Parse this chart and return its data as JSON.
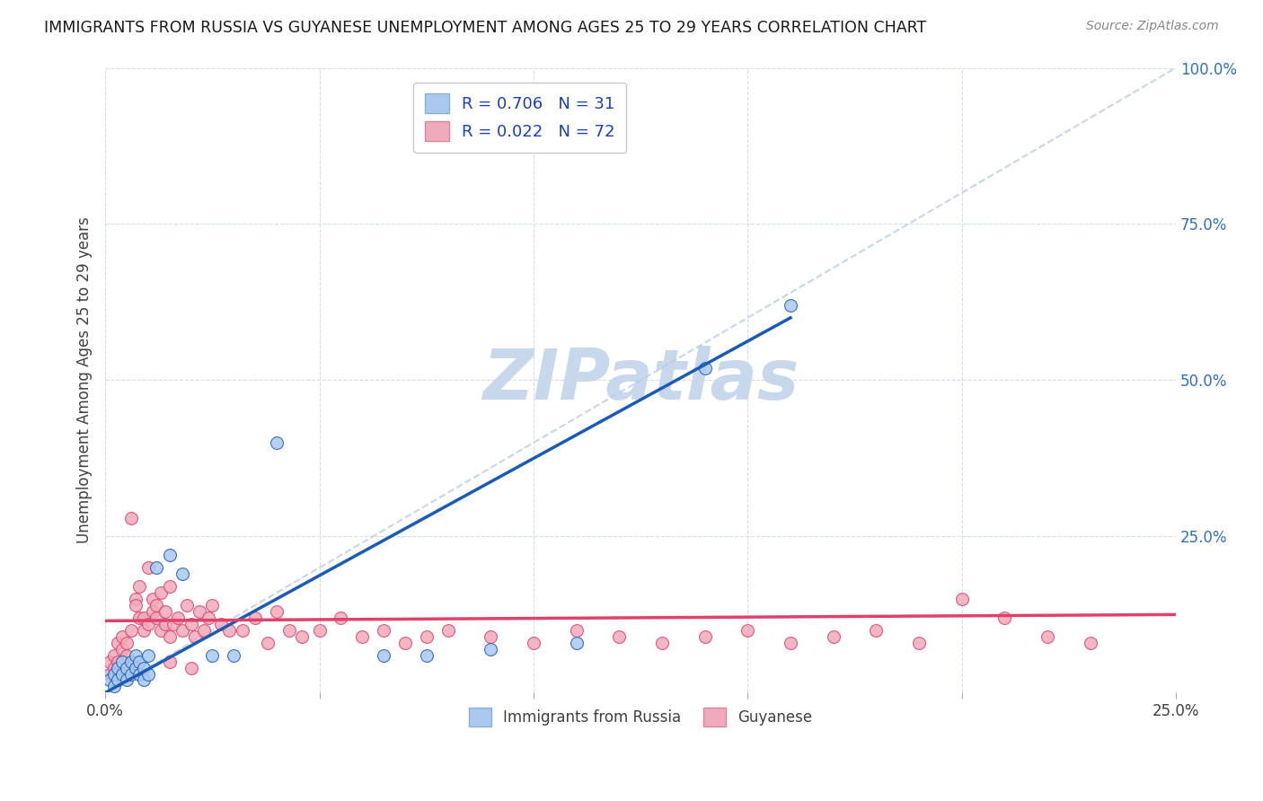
{
  "title": "IMMIGRANTS FROM RUSSIA VS GUYANESE UNEMPLOYMENT AMONG AGES 25 TO 29 YEARS CORRELATION CHART",
  "source": "Source: ZipAtlas.com",
  "ylabel": "Unemployment Among Ages 25 to 29 years",
  "xlim": [
    0.0,
    0.25
  ],
  "ylim": [
    0.0,
    1.0
  ],
  "xticks": [
    0.0,
    0.25
  ],
  "xtick_labels": [
    "0.0%",
    "25.0%"
  ],
  "yticks": [
    0.0,
    0.25,
    0.5,
    0.75,
    1.0
  ],
  "ytick_labels": [
    "",
    "25.0%",
    "50.0%",
    "75.0%",
    "100.0%"
  ],
  "russia_R": 0.706,
  "russia_N": 31,
  "guyanese_R": 0.022,
  "guyanese_N": 72,
  "russia_color": "#aac8f0",
  "guyanese_color": "#f0aabb",
  "russia_line_color": "#1a5cb5",
  "guyanese_line_color": "#e0406a",
  "dashed_line_color": "#b8cce4",
  "watermark": "ZIPatlas",
  "watermark_color": "#c8d8ec",
  "russia_x": [
    0.001,
    0.002,
    0.002,
    0.003,
    0.003,
    0.004,
    0.004,
    0.005,
    0.005,
    0.006,
    0.006,
    0.007,
    0.007,
    0.008,
    0.008,
    0.009,
    0.009,
    0.01,
    0.01,
    0.012,
    0.015,
    0.018,
    0.025,
    0.03,
    0.04,
    0.065,
    0.075,
    0.09,
    0.11,
    0.14,
    0.16
  ],
  "russia_y": [
    0.02,
    0.01,
    0.03,
    0.02,
    0.04,
    0.03,
    0.05,
    0.02,
    0.04,
    0.03,
    0.05,
    0.04,
    0.06,
    0.03,
    0.05,
    0.02,
    0.04,
    0.03,
    0.06,
    0.2,
    0.22,
    0.19,
    0.06,
    0.06,
    0.4,
    0.06,
    0.06,
    0.07,
    0.08,
    0.52,
    0.62
  ],
  "guyanese_x": [
    0.001,
    0.001,
    0.002,
    0.002,
    0.003,
    0.003,
    0.004,
    0.004,
    0.005,
    0.005,
    0.006,
    0.006,
    0.007,
    0.007,
    0.008,
    0.008,
    0.009,
    0.009,
    0.01,
    0.01,
    0.011,
    0.011,
    0.012,
    0.012,
    0.013,
    0.013,
    0.014,
    0.014,
    0.015,
    0.015,
    0.016,
    0.017,
    0.018,
    0.019,
    0.02,
    0.021,
    0.022,
    0.023,
    0.024,
    0.025,
    0.027,
    0.029,
    0.032,
    0.035,
    0.038,
    0.04,
    0.043,
    0.046,
    0.05,
    0.055,
    0.06,
    0.065,
    0.07,
    0.075,
    0.08,
    0.09,
    0.1,
    0.11,
    0.12,
    0.13,
    0.14,
    0.15,
    0.16,
    0.17,
    0.18,
    0.19,
    0.2,
    0.21,
    0.22,
    0.23,
    0.015,
    0.02
  ],
  "guyanese_y": [
    0.03,
    0.05,
    0.04,
    0.06,
    0.05,
    0.08,
    0.07,
    0.09,
    0.06,
    0.08,
    0.28,
    0.1,
    0.15,
    0.14,
    0.12,
    0.17,
    0.1,
    0.12,
    0.2,
    0.11,
    0.13,
    0.15,
    0.12,
    0.14,
    0.1,
    0.16,
    0.13,
    0.11,
    0.09,
    0.17,
    0.11,
    0.12,
    0.1,
    0.14,
    0.11,
    0.09,
    0.13,
    0.1,
    0.12,
    0.14,
    0.11,
    0.1,
    0.1,
    0.12,
    0.08,
    0.13,
    0.1,
    0.09,
    0.1,
    0.12,
    0.09,
    0.1,
    0.08,
    0.09,
    0.1,
    0.09,
    0.08,
    0.1,
    0.09,
    0.08,
    0.09,
    0.1,
    0.08,
    0.09,
    0.1,
    0.08,
    0.15,
    0.12,
    0.09,
    0.08,
    0.05,
    0.04
  ],
  "russia_line_x": [
    0.0,
    0.16
  ],
  "russia_line_y": [
    0.0,
    0.6
  ],
  "guyanese_line_x": [
    0.0,
    0.25
  ],
  "guyanese_line_y": [
    0.115,
    0.125
  ]
}
